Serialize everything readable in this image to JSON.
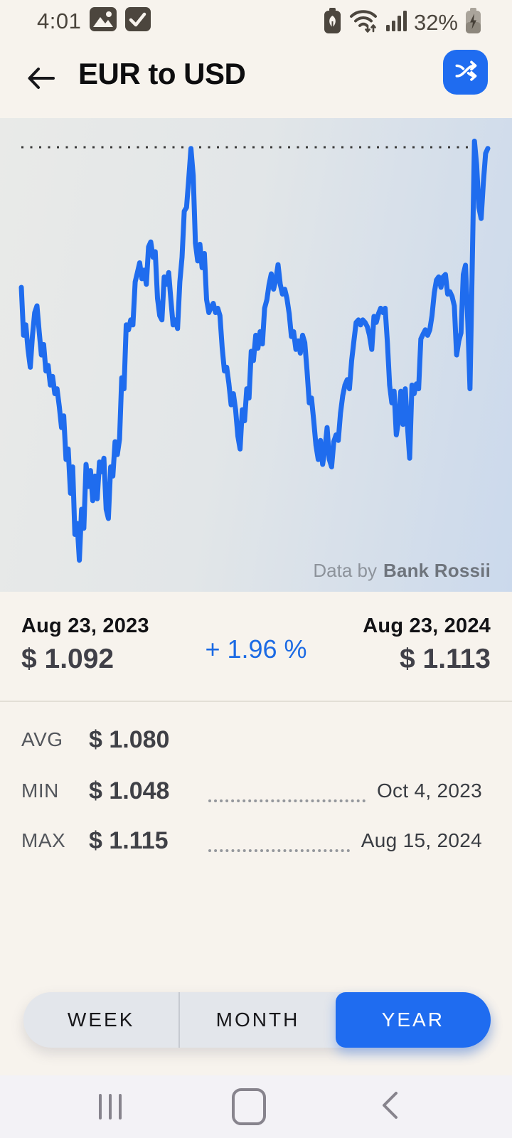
{
  "status_bar": {
    "time": "4:01",
    "battery_percent": "32%",
    "left_icons": [
      "gallery-notification",
      "checkbox-notification"
    ],
    "right_icons": [
      "battery-saver",
      "wifi-with-traffic",
      "signal-strength",
      "battery-charging"
    ]
  },
  "header": {
    "title": "EUR to USD",
    "back_icon": "arrow-left",
    "swap_icon": "shuffle-swap",
    "accent_color": "#1f6cf0"
  },
  "chart": {
    "attribution_prefix": "Data by",
    "attribution_source": "Bank Rossii",
    "line_color": "#1f6cee",
    "max_line_color": "#3a3a3a",
    "background_gradient": [
      "#e9eae8",
      "#cbd9ec"
    ]
  },
  "chart_data": {
    "type": "line",
    "title": "EUR to USD exchange rate, 1 year",
    "x_start_label": "Aug 23, 2023",
    "x_end_label": "Aug 23, 2024",
    "start_value": 1.092,
    "end_value": 1.113,
    "avg": 1.08,
    "min": 1.048,
    "min_date": "Oct 4, 2023",
    "max": 1.115,
    "max_date": "Aug 15, 2024",
    "change_percent": 1.96,
    "max_dotted_line": 1.115,
    "ylim": [
      1.044,
      1.118
    ],
    "grid": "none",
    "values": [
      1.0922,
      1.0844,
      1.0861,
      1.0821,
      1.0792,
      1.0844,
      1.0881,
      1.0892,
      1.085,
      1.0812,
      1.0829,
      1.0786,
      1.0795,
      1.0763,
      1.0777,
      1.0749,
      1.0757,
      1.0728,
      1.0694,
      1.0713,
      1.0642,
      1.0659,
      1.0587,
      1.063,
      1.052,
      1.0538,
      1.0478,
      1.0561,
      1.053,
      1.0634,
      1.0598,
      1.0624,
      1.0575,
      1.0615,
      1.0578,
      1.0638,
      1.0622,
      1.0644,
      1.0561,
      1.0546,
      1.063,
      1.0615,
      1.0671,
      1.065,
      1.0675,
      1.0775,
      1.0757,
      1.0861,
      1.0853,
      1.0869,
      1.0861,
      1.0931,
      1.0946,
      1.0962,
      1.0936,
      1.095,
      1.0927,
      1.0988,
      1.0996,
      1.0971,
      1.098,
      1.0904,
      1.0876,
      1.0869,
      1.0939,
      1.0927,
      1.0946,
      1.0902,
      1.0861,
      1.0869,
      1.0855,
      1.0931,
      1.0971,
      1.1046,
      1.1052,
      1.1098,
      1.1148,
      1.1104,
      1.0994,
      1.0965,
      1.0992,
      1.0954,
      1.0977,
      1.0902,
      1.0881,
      1.089,
      1.0896,
      1.0881,
      1.0888,
      1.0876,
      1.0823,
      1.0786,
      1.0792,
      1.0765,
      1.0731,
      1.0749,
      1.0723,
      1.068,
      1.0659,
      1.0723,
      1.0705,
      1.0757,
      1.0742,
      1.0818,
      1.0803,
      1.0844,
      1.0823,
      1.085,
      1.083,
      1.0888,
      1.0902,
      1.0927,
      1.0944,
      1.0919,
      1.0934,
      1.0959,
      1.0927,
      1.0911,
      1.0919,
      1.0904,
      1.0879,
      1.0842,
      1.085,
      1.0821,
      1.0835,
      1.0815,
      1.0844,
      1.0832,
      1.0786,
      1.0734,
      1.0742,
      1.0705,
      1.0665,
      1.0642,
      1.0673,
      1.0634,
      1.0659,
      1.0694,
      1.0642,
      1.063,
      1.0671,
      1.0682,
      1.0673,
      1.0717,
      1.0746,
      1.0763,
      1.0772,
      1.0757,
      1.0803,
      1.0835,
      1.0865,
      1.0869,
      1.0861,
      1.0869,
      1.0865,
      1.0858,
      1.0844,
      1.0821,
      1.0875,
      1.0865,
      1.0879,
      1.0888,
      1.0881,
      1.0888,
      1.0832,
      1.0763,
      1.0734,
      1.0753,
      1.0682,
      1.0705,
      1.0753,
      1.0699,
      1.0757,
      1.0696,
      1.0644,
      1.0763,
      1.0749,
      1.0765,
      1.0757,
      1.0838,
      1.0846,
      1.0853,
      1.0844,
      1.0853,
      1.0876,
      1.0913,
      1.0934,
      1.0939,
      1.0922,
      1.0939,
      1.0943,
      1.0911,
      1.0915,
      1.0907,
      1.0892,
      1.0812,
      1.0835,
      1.0848,
      1.0943,
      1.0958,
      1.0867,
      1.0757,
      1.0952,
      1.116,
      1.1121,
      1.1052,
      1.1034,
      1.1092,
      1.114,
      1.1148
    ]
  },
  "summary": {
    "start_date": "Aug 23, 2023",
    "start_price": "$ 1.092",
    "change": "+ 1.96 %",
    "end_date": "Aug 23, 2024",
    "end_price": "$ 1.113"
  },
  "stats": {
    "rows": [
      {
        "label": "AVG",
        "value": "$ 1.080",
        "date": ""
      },
      {
        "label": "MIN",
        "value": "$ 1.048",
        "date": "Oct 4, 2023"
      },
      {
        "label": "MAX",
        "value": "$ 1.115",
        "date": "Aug 15, 2024"
      }
    ]
  },
  "range_tabs": {
    "options": [
      {
        "label": "WEEK",
        "active": false
      },
      {
        "label": "MONTH",
        "active": false
      },
      {
        "label": "YEAR",
        "active": true
      }
    ]
  },
  "nav_bar": {
    "icons": [
      "recents",
      "home",
      "back"
    ]
  }
}
